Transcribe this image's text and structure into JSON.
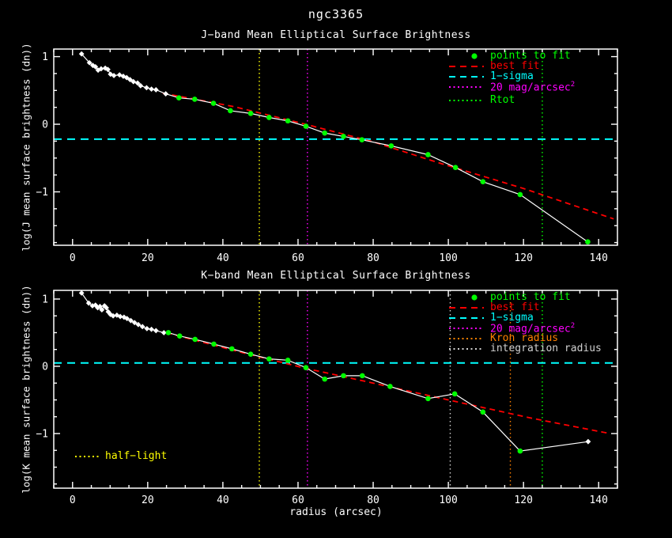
{
  "figure": {
    "title": "ngc3365",
    "background": "#000000",
    "frame_color": "#ffffff"
  },
  "chart_data": [
    {
      "id": "J",
      "type": "line",
      "title": "J−band Mean Elliptical Surface Brightness",
      "xlabel": "",
      "ylabel": "log(J mean surface brightness (dn))",
      "xlim": [
        -5,
        145
      ],
      "ylim": [
        -1.79,
        1.112
      ],
      "xticks": [
        0,
        20,
        40,
        60,
        80,
        100,
        120,
        140
      ],
      "yticks": [
        -1,
        0,
        1
      ],
      "x_minor_step": 5,
      "y_minor_step": 0.25,
      "series": {
        "profile": {
          "name": "surface brightness profile",
          "color": "#ffffff",
          "marker": "diamond",
          "points": [
            [
              2.4,
              1.04
            ],
            [
              4.5,
              0.91
            ],
            [
              5.4,
              0.87
            ],
            [
              6.1,
              0.85
            ],
            [
              6.8,
              0.8
            ],
            [
              7.6,
              0.82
            ],
            [
              8.7,
              0.83
            ],
            [
              9.4,
              0.81
            ],
            [
              10.1,
              0.74
            ],
            [
              11.0,
              0.72
            ],
            [
              12.5,
              0.73
            ],
            [
              13.5,
              0.71
            ],
            [
              14.4,
              0.69
            ],
            [
              15.3,
              0.66
            ],
            [
              16.2,
              0.63
            ],
            [
              17.3,
              0.61
            ],
            [
              18.1,
              0.57
            ],
            [
              19.7,
              0.54
            ],
            [
              21.0,
              0.52
            ],
            [
              22.2,
              0.51
            ],
            [
              24.8,
              0.45
            ]
          ]
        },
        "fit_points": {
          "name": "points to fit",
          "color": "#00ff00",
          "marker": "circle",
          "points": [
            [
              28.3,
              0.39
            ],
            [
              32.5,
              0.37
            ],
            [
              37.5,
              0.31
            ],
            [
              42.0,
              0.2
            ],
            [
              47.4,
              0.16
            ],
            [
              52.3,
              0.1
            ],
            [
              57.3,
              0.05
            ],
            [
              62.1,
              -0.03
            ],
            [
              67.1,
              -0.13
            ],
            [
              72.1,
              -0.18
            ],
            [
              77.0,
              -0.23
            ],
            [
              84.8,
              -0.32
            ],
            [
              94.6,
              -0.45
            ],
            [
              101.9,
              -0.64
            ],
            [
              109.2,
              -0.85
            ],
            [
              119.1,
              -1.04
            ],
            [
              137.1,
              -1.74
            ]
          ]
        },
        "best_fit": {
          "name": "best fit",
          "color": "#ff0000",
          "style": "dashed",
          "points": [
            [
              24,
              0.46
            ],
            [
              43,
              0.26
            ],
            [
              62,
              0.0
            ],
            [
              80,
              -0.26
            ],
            [
              98,
              -0.58
            ],
            [
              120,
              -0.95
            ],
            [
              144,
              -1.4
            ]
          ]
        }
      },
      "hline": {
        "label": "1−sigma",
        "y": -0.22,
        "color": "#00ffff",
        "style": "dashed"
      },
      "vlines": [
        {
          "label": "half−light",
          "x": 49.7,
          "color": "#ffff00",
          "style": "dotted"
        },
        {
          "label": "20 mag/arcsec^2",
          "x": 62.5,
          "color": "#ff00ff",
          "style": "dotted"
        },
        {
          "label": "Rtot",
          "x": 125,
          "color": "#00ff00",
          "style": "dotted"
        }
      ],
      "legend": [
        {
          "sample": "dot",
          "color": "#00ff00",
          "label": "points to fit"
        },
        {
          "sample": "dashes",
          "color": "#ff0000",
          "label": "best fit"
        },
        {
          "sample": "dashes",
          "color": "#00ffff",
          "label": "1−sigma"
        },
        {
          "sample": "dots",
          "color": "#ff00ff",
          "label": "20 mag/arcsec",
          "sup": "2"
        },
        {
          "sample": "dots",
          "color": "#00ff00",
          "label": "Rtot"
        }
      ]
    },
    {
      "id": "K",
      "type": "line",
      "title": "K−band Mean Elliptical Surface Brightness",
      "xlabel": "radius (arcsec)",
      "ylabel": "log(K mean surface brightness (dn))",
      "xlim": [
        -5,
        145
      ],
      "ylim": [
        -1.812,
        1.129
      ],
      "xticks": [
        0,
        20,
        40,
        60,
        80,
        100,
        120,
        140
      ],
      "yticks": [
        -1,
        0,
        1
      ],
      "x_minor_step": 5,
      "y_minor_step": 0.25,
      "series": {
        "profile": {
          "name": "surface brightness profile",
          "color": "#ffffff",
          "marker": "diamond",
          "points": [
            [
              2.4,
              1.09
            ],
            [
              4.3,
              0.94
            ],
            [
              5.3,
              0.9
            ],
            [
              6.1,
              0.91
            ],
            [
              6.7,
              0.87
            ],
            [
              7.3,
              0.89
            ],
            [
              7.8,
              0.84
            ],
            [
              8.5,
              0.9
            ],
            [
              9.0,
              0.87
            ],
            [
              9.5,
              0.81
            ],
            [
              10.1,
              0.77
            ],
            [
              10.8,
              0.75
            ],
            [
              11.8,
              0.76
            ],
            [
              12.7,
              0.74
            ],
            [
              13.7,
              0.73
            ],
            [
              14.5,
              0.71
            ],
            [
              15.5,
              0.68
            ],
            [
              16.5,
              0.65
            ],
            [
              17.5,
              0.62
            ],
            [
              18.6,
              0.59
            ],
            [
              19.8,
              0.56
            ],
            [
              21.0,
              0.55
            ],
            [
              22.2,
              0.53
            ],
            [
              24.3,
              0.5
            ],
            [
              137.2,
              -1.12
            ]
          ]
        },
        "fit_points": {
          "name": "points to fit",
          "color": "#00ff00",
          "marker": "circle",
          "points": [
            [
              25.5,
              0.5
            ],
            [
              28.5,
              0.45
            ],
            [
              32.6,
              0.4
            ],
            [
              37.6,
              0.33
            ],
            [
              42.4,
              0.26
            ],
            [
              47.4,
              0.18
            ],
            [
              52.3,
              0.11
            ],
            [
              57.3,
              0.09
            ],
            [
              62.1,
              -0.02
            ],
            [
              67.1,
              -0.19
            ],
            [
              72.1,
              -0.14
            ],
            [
              77.1,
              -0.14
            ],
            [
              84.5,
              -0.3
            ],
            [
              94.6,
              -0.48
            ],
            [
              101.7,
              -0.41
            ],
            [
              109.2,
              -0.68
            ],
            [
              119.1,
              -1.26
            ]
          ]
        },
        "best_fit": {
          "name": "best fit",
          "color": "#ff0000",
          "style": "dashed",
          "points": [
            [
              25,
              0.5
            ],
            [
              44,
              0.22
            ],
            [
              62,
              -0.03
            ],
            [
              80,
              -0.25
            ],
            [
              100,
              -0.5
            ],
            [
              122,
              -0.77
            ],
            [
              143,
              -1.0
            ]
          ]
        }
      },
      "hline": {
        "label": "1−sigma",
        "y": 0.05,
        "color": "#00ffff",
        "style": "dashed"
      },
      "vlines": [
        {
          "label": "half−light",
          "x": 49.7,
          "color": "#ffff00",
          "style": "dotted"
        },
        {
          "label": "20 mag/arcsec^2",
          "x": 62.5,
          "color": "#ff00ff",
          "style": "dotted"
        },
        {
          "label": "integration radius",
          "x": 100.5,
          "color": "#d0d0d0",
          "style": "dotted"
        },
        {
          "label": "Kron radius",
          "x": 116.5,
          "color": "#ff8000",
          "style": "dotted"
        },
        {
          "label": "Rtot",
          "x": 125,
          "color": "#00ff00",
          "style": "dotted"
        }
      ],
      "legend": [
        {
          "sample": "dot",
          "color": "#00ff00",
          "label": "points to fit"
        },
        {
          "sample": "dashes",
          "color": "#ff0000",
          "label": "best fit"
        },
        {
          "sample": "dashes",
          "color": "#00ffff",
          "label": "1−sigma"
        },
        {
          "sample": "dots",
          "color": "#ff00ff",
          "label": "20 mag/arcsec",
          "sup": "2"
        },
        {
          "sample": "dots",
          "color": "#ff8000",
          "label": "Kron radius"
        },
        {
          "sample": "dots",
          "color": "#d0d0d0",
          "label": "integration radius"
        }
      ],
      "annotation": {
        "label": "half−light",
        "color": "#ffff00",
        "sample": "dots"
      }
    }
  ]
}
